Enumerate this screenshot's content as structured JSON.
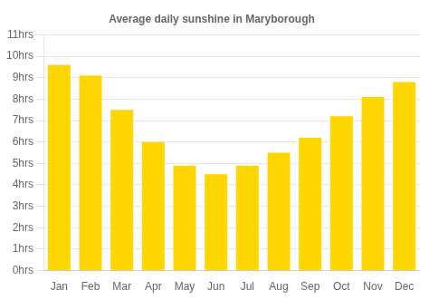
{
  "chart_data": {
    "type": "bar",
    "title": "Average daily sunshine in Maryborough",
    "categories": [
      "Jan",
      "Feb",
      "Mar",
      "Apr",
      "May",
      "Jun",
      "Jul",
      "Aug",
      "Sep",
      "Oct",
      "Nov",
      "Dec"
    ],
    "values": [
      9.6,
      9.1,
      7.5,
      6.0,
      4.9,
      4.5,
      4.9,
      5.5,
      6.2,
      7.2,
      8.1,
      8.8
    ],
    "color": "#FFD700",
    "ylim": [
      0,
      11
    ],
    "yticks": [
      {
        "value": 0,
        "label": "0hrs"
      },
      {
        "value": 1,
        "label": "1hrs"
      },
      {
        "value": 2,
        "label": "2hrs"
      },
      {
        "value": 3,
        "label": "3hrs"
      },
      {
        "value": 4,
        "label": "4hrs"
      },
      {
        "value": 5,
        "label": "5hrs"
      },
      {
        "value": 6,
        "label": "6hrs"
      },
      {
        "value": 7,
        "label": "7hrs"
      },
      {
        "value": 8,
        "label": "8hrs"
      },
      {
        "value": 9,
        "label": "9hrs"
      },
      {
        "value": 10,
        "label": "10hrs"
      },
      {
        "value": 11,
        "label": "11hrs"
      }
    ],
    "grid": true
  }
}
